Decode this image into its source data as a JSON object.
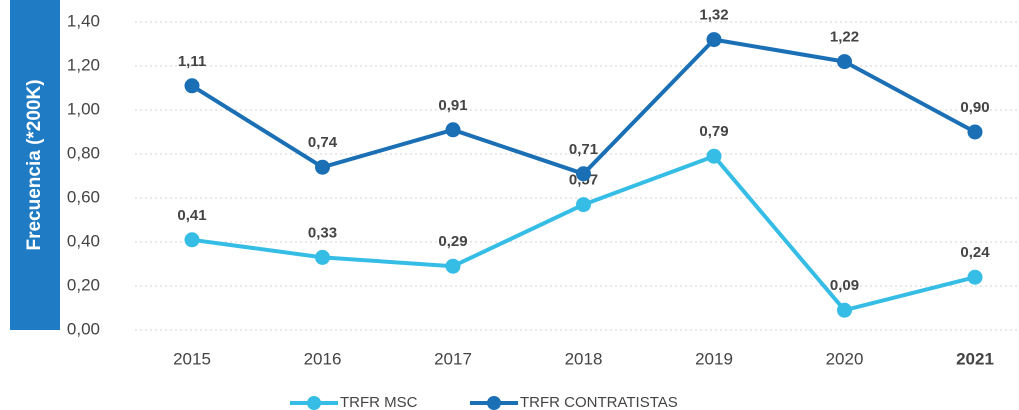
{
  "chart_data": {
    "type": "line",
    "y_label": "Frecuencia (*200K)",
    "categories": [
      "2015",
      "2016",
      "2017",
      "2018",
      "2019",
      "2020",
      "2021"
    ],
    "series": [
      {
        "name": "TRFR MSC",
        "color": "#36bde6",
        "values": [
          0.41,
          0.33,
          0.29,
          0.57,
          0.79,
          0.09,
          0.24
        ],
        "value_labels": [
          "0,41",
          "0,33",
          "0,29",
          "0,57",
          "0,79",
          "0,09",
          "0,24"
        ]
      },
      {
        "name": "TRFR CONTRATISTAS",
        "color": "#1a6fb5",
        "values": [
          1.11,
          0.74,
          0.91,
          0.71,
          1.32,
          1.22,
          0.9
        ],
        "value_labels": [
          "1,11",
          "0,74",
          "0,91",
          "0,71",
          "1,32",
          "1,22",
          "0,90"
        ]
      }
    ],
    "ylim": [
      0,
      1.4
    ],
    "yticks": [
      {
        "value": 0,
        "label": "0,00"
      },
      {
        "value": 0.2,
        "label": "0,20"
      },
      {
        "value": 0.4,
        "label": "0,40"
      },
      {
        "value": 0.6,
        "label": "0,60"
      },
      {
        "value": 0.8,
        "label": "0,80"
      },
      {
        "value": 1.0,
        "label": "1,00"
      },
      {
        "value": 1.2,
        "label": "1,20"
      },
      {
        "value": 1.4,
        "label": "1,40"
      }
    ],
    "grid": true,
    "axis_label_color": "#1e7bc4",
    "legend": "bottom"
  }
}
